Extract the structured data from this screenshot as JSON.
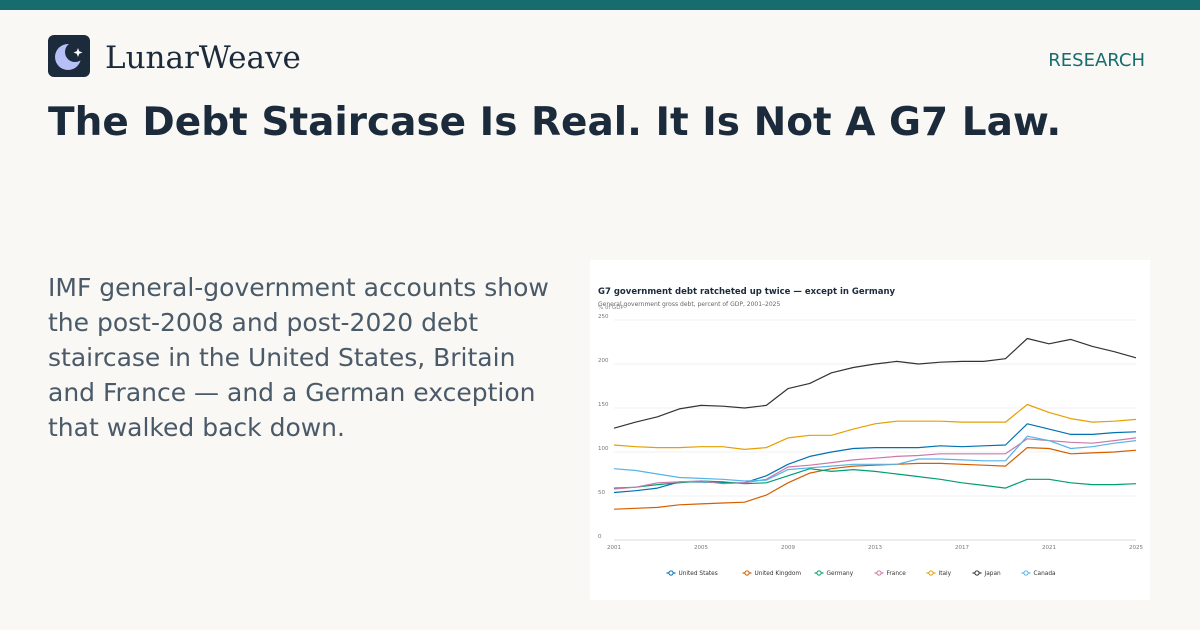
{
  "brand": {
    "name": "LunarWeave"
  },
  "nav": {
    "section": "RESEARCH"
  },
  "headline": "The Debt Staircase Is Real. It Is Not A G7 Law.",
  "lede": "IMF general-government accounts show the post-2008 and post-2020 debt staircase in the United States, Britain and France — and a German exception that walked back down.",
  "colors": {
    "topbar": "#176d6e",
    "accent": "#176d6e",
    "ink": "#1c2b3b"
  },
  "chart_data": {
    "type": "line",
    "title": "G7 government debt ratcheted up twice — except in Germany",
    "subtitle": "General government gross debt, percent of GDP, 2001–2025",
    "ylabel": "% of GDP",
    "ylim": [
      0,
      250
    ],
    "yticks": [
      0,
      50,
      100,
      150,
      200,
      250
    ],
    "xlim": [
      2001,
      2025
    ],
    "xticks": [
      2001,
      2005,
      2009,
      2013,
      2017,
      2021,
      2025
    ],
    "grid": true,
    "legend": "bottom",
    "x": [
      2001,
      2002,
      2003,
      2004,
      2005,
      2006,
      2007,
      2008,
      2009,
      2010,
      2011,
      2012,
      2013,
      2014,
      2015,
      2016,
      2017,
      2018,
      2019,
      2020,
      2021,
      2022,
      2023,
      2024,
      2025
    ],
    "series": [
      {
        "name": "United States",
        "color": "#0072b2",
        "values": [
          54,
          56,
          59,
          66,
          66,
          65,
          65,
          73,
          86,
          95,
          100,
          104,
          105,
          105,
          105,
          107,
          106,
          107,
          108,
          132,
          126,
          120,
          120,
          122,
          123
        ]
      },
      {
        "name": "United Kingdom",
        "color": "#d55e00",
        "values": [
          35,
          36,
          37,
          40,
          41,
          42,
          43,
          51,
          65,
          76,
          81,
          84,
          85,
          86,
          87,
          87,
          86,
          85,
          84,
          105,
          104,
          98,
          99,
          100,
          102
        ]
      },
      {
        "name": "Germany",
        "color": "#009e73",
        "values": [
          59,
          60,
          63,
          65,
          67,
          66,
          64,
          65,
          73,
          81,
          78,
          80,
          78,
          75,
          72,
          69,
          65,
          62,
          59,
          69,
          69,
          65,
          63,
          63,
          64
        ]
      },
      {
        "name": "France",
        "color": "#cc79a7",
        "values": [
          58,
          60,
          65,
          66,
          67,
          64,
          65,
          69,
          83,
          85,
          88,
          91,
          93,
          95,
          96,
          98,
          98,
          98,
          98,
          115,
          113,
          111,
          110,
          113,
          116
        ]
      },
      {
        "name": "Italy",
        "color": "#e69f00",
        "values": [
          108,
          106,
          105,
          105,
          106,
          106,
          103,
          105,
          116,
          119,
          119,
          126,
          132,
          135,
          135,
          135,
          134,
          134,
          134,
          154,
          145,
          138,
          134,
          135,
          137
        ]
      },
      {
        "name": "Japan",
        "color": "#333333",
        "values": [
          127,
          134,
          140,
          149,
          153,
          152,
          150,
          153,
          172,
          178,
          190,
          196,
          200,
          203,
          200,
          202,
          203,
          203,
          206,
          229,
          223,
          228,
          220,
          214,
          207
        ]
      },
      {
        "name": "Canada",
        "color": "#56b4e9",
        "values": [
          81,
          79,
          75,
          71,
          70,
          69,
          67,
          68,
          80,
          82,
          84,
          86,
          86,
          86,
          92,
          92,
          91,
          90,
          90,
          118,
          113,
          104,
          106,
          110,
          113
        ]
      }
    ]
  }
}
